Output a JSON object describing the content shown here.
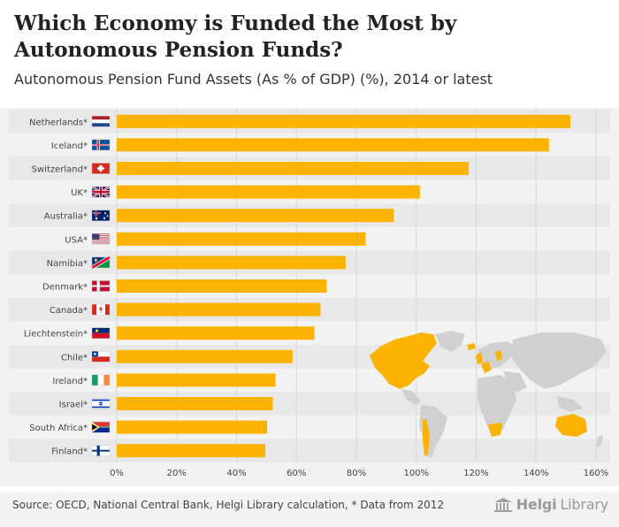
{
  "header": {
    "title": "Which Economy is Funded the Most by Autonomous Pension Funds?",
    "subtitle": "Autonomous Pension Fund Assets (As % of GDP) (%), 2014 or latest"
  },
  "footer": {
    "source": "Source: OECD, National Central Bank, Helgi Library calculation, * Data from 2012",
    "brand_a": "Helgi",
    "brand_b": "Library",
    "brand_icon": "library-building-icon"
  },
  "colors": {
    "bar": "#fbb300",
    "map_land": "#d0d0d0",
    "map_highlight": "#fbb300",
    "row_alt": "#e8e8e8",
    "text": "#444444"
  },
  "chart_data": {
    "type": "bar",
    "orientation": "horizontal",
    "title": "Autonomous Pension Fund Assets (As % of GDP) (%), 2014 or latest",
    "xlabel": "",
    "ylabel": "",
    "xlim": [
      0,
      160
    ],
    "x_ticks": [
      "0%",
      "20%",
      "40%",
      "60%",
      "80%",
      "100%",
      "120%",
      "140%",
      "160%"
    ],
    "grid": true,
    "categories": [
      "Netherlands*",
      "Iceland*",
      "Switzerland*",
      "UK*",
      "Australia*",
      "USA*",
      "Namibia*",
      "Denmark*",
      "Canada*",
      "Liechtenstein*",
      "Chile*",
      "Ireland*",
      "Israel*",
      "South Africa*",
      "Finland*"
    ],
    "flags": [
      "netherlands-flag-icon",
      "iceland-flag-icon",
      "switzerland-flag-icon",
      "uk-flag-icon",
      "australia-flag-icon",
      "usa-flag-icon",
      "namibia-flag-icon",
      "denmark-flag-icon",
      "canada-flag-icon",
      "liechtenstein-flag-icon",
      "chile-flag-icon",
      "ireland-flag-icon",
      "israel-flag-icon",
      "south-africa-flag-icon",
      "finland-flag-icon"
    ],
    "values": [
      151.5,
      144.3,
      117.5,
      101.2,
      92.5,
      83.1,
      76.4,
      70.1,
      68.0,
      66.0,
      58.7,
      53.0,
      52.1,
      50.2,
      49.6
    ]
  }
}
